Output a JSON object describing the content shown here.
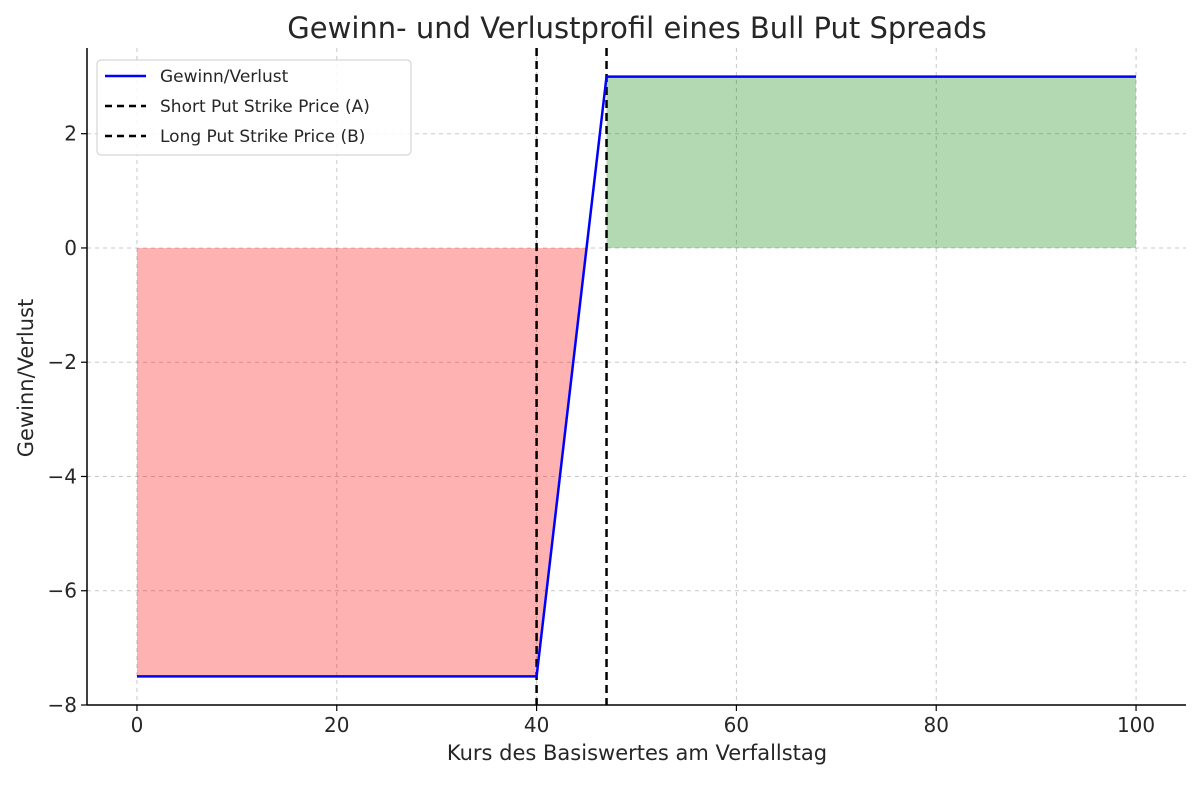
{
  "chart_data": {
    "type": "line",
    "title": "Gewinn- und Verlustprofil eines Bull Put Spreads",
    "xlabel": "Kurs des Basiswertes am Verfallstag",
    "ylabel": "Gewinn/Verlust",
    "xlim": [
      -5,
      105
    ],
    "ylim": [
      -8,
      3.5
    ],
    "xticks": [
      0,
      20,
      40,
      60,
      80,
      100
    ],
    "xtick_labels": [
      "0",
      "20",
      "40",
      "60",
      "80",
      "100"
    ],
    "yticks": [
      -8,
      -6,
      -4,
      -2,
      0,
      2
    ],
    "ytick_labels": [
      "−8",
      "−6",
      "−4",
      "−2",
      "0",
      "2"
    ],
    "grid": true,
    "legend_position": "top-left",
    "series": [
      {
        "name": "Gewinn/Verlust",
        "color": "#0000ff",
        "style": "solid",
        "x": [
          0,
          40,
          47,
          100
        ],
        "y": [
          -7.5,
          -7.5,
          3,
          3
        ]
      }
    ],
    "vertical_lines": [
      {
        "name": "Short Put Strike Price (A)",
        "x": 40,
        "color": "#000000",
        "style": "dashed"
      },
      {
        "name": "Long Put Strike Price (B)",
        "x": 47,
        "color": "#000000",
        "style": "dashed"
      }
    ],
    "fill_regions": [
      {
        "label": "loss",
        "color": "#ff0000",
        "alpha": 0.3
      },
      {
        "label": "profit",
        "color": "#008000",
        "alpha": 0.3
      }
    ],
    "legend": [
      {
        "label": "Gewinn/Verlust",
        "color": "#0000ff",
        "style": "solid"
      },
      {
        "label": "Short Put Strike Price (A)",
        "color": "#000000",
        "style": "dashed"
      },
      {
        "label": "Long Put Strike Price (B)",
        "color": "#000000",
        "style": "dashed"
      }
    ]
  }
}
